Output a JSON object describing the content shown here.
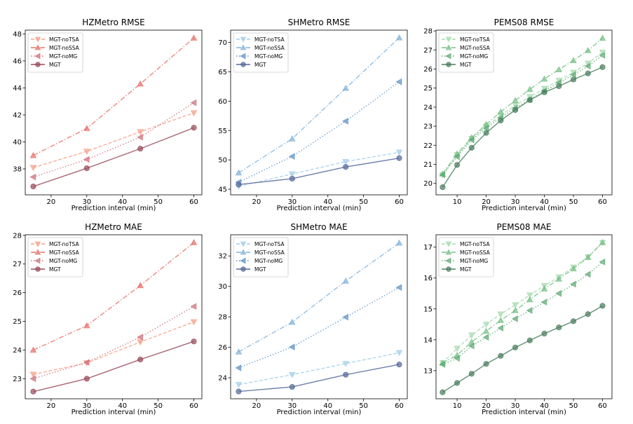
{
  "chart_data": [
    {
      "type": "line",
      "title": "HZMetro RMSE",
      "xlabel": "Prediction interval (min)",
      "ylabel": "",
      "x": [
        15,
        30,
        45,
        60
      ],
      "xlim": [
        12.75,
        62.25
      ],
      "ylim": [
        36.08,
        48.28
      ],
      "xticks": [
        20,
        30,
        40,
        50,
        60
      ],
      "yticks": [
        38,
        40,
        42,
        44,
        46,
        48
      ],
      "legend": "top-left",
      "grid": false,
      "series": [
        {
          "name": "MGT-noTSA",
          "values": [
            38.1,
            39.3,
            40.75,
            42.15
          ],
          "color": "#f7a088",
          "marker": "triangle-down",
          "dash": "dashed"
        },
        {
          "name": "MGT-noSSA",
          "values": [
            39.0,
            41.0,
            44.3,
            47.7
          ],
          "color": "#e5736c",
          "marker": "triangle-up",
          "dash": "dashdot"
        },
        {
          "name": "MGT-noMG",
          "values": [
            37.4,
            38.7,
            40.35,
            42.9
          ],
          "color": "#cf6f7a",
          "marker": "triangle-left",
          "dash": "dotted"
        },
        {
          "name": "MGT",
          "values": [
            36.7,
            38.05,
            39.5,
            41.05
          ],
          "color": "#9a4a5a",
          "marker": "circle",
          "dash": "solid"
        }
      ]
    },
    {
      "type": "line",
      "title": "SHMetro RMSE",
      "xlabel": "Prediction interval (min)",
      "ylabel": "",
      "x": [
        15,
        30,
        45,
        60
      ],
      "xlim": [
        12.75,
        62.25
      ],
      "ylim": [
        44.05,
        72.1
      ],
      "xticks": [
        20,
        30,
        40,
        50,
        60
      ],
      "yticks": [
        45,
        50,
        55,
        60,
        65,
        70
      ],
      "legend": "top-left",
      "grid": false,
      "series": [
        {
          "name": "MGT-noTSA",
          "values": [
            45.5,
            47.6,
            49.7,
            51.3
          ],
          "color": "#a3cfea",
          "marker": "triangle-down",
          "dash": "dashed"
        },
        {
          "name": "MGT-noSSA",
          "values": [
            47.8,
            53.6,
            62.2,
            70.8
          ],
          "color": "#82b3dc",
          "marker": "triangle-up",
          "dash": "dashdot"
        },
        {
          "name": "MGT-noMG",
          "values": [
            46.2,
            50.6,
            56.6,
            63.3
          ],
          "color": "#5f93c8",
          "marker": "triangle-left",
          "dash": "dotted"
        },
        {
          "name": "MGT",
          "values": [
            45.8,
            46.8,
            48.8,
            50.3
          ],
          "color": "#56699a",
          "marker": "circle",
          "dash": "solid"
        }
      ]
    },
    {
      "type": "line",
      "title": "PEMS08 RMSE",
      "xlabel": "Prediction interval (min)",
      "ylabel": "",
      "x": [
        5,
        10,
        15,
        20,
        25,
        30,
        35,
        40,
        45,
        50,
        55,
        60
      ],
      "xlim": [
        2.75,
        63.25
      ],
      "ylim": [
        19.4,
        28.04
      ],
      "xticks": [
        10,
        20,
        30,
        40,
        50,
        60
      ],
      "yticks": [
        20,
        21,
        22,
        23,
        24,
        25,
        26,
        27,
        28
      ],
      "legend": "top-left",
      "grid": false,
      "series": [
        {
          "name": "MGT-noTSA",
          "values": [
            20.45,
            21.5,
            22.35,
            23.0,
            23.55,
            24.1,
            24.55,
            24.98,
            25.4,
            25.82,
            26.3,
            26.88
          ],
          "color": "#a6dbae",
          "marker": "triangle-down",
          "dash": "dashed"
        },
        {
          "name": "MGT-noSSA",
          "values": [
            20.5,
            21.55,
            22.4,
            23.1,
            23.75,
            24.35,
            24.93,
            25.48,
            25.97,
            26.45,
            26.97,
            27.62
          ],
          "color": "#78c088",
          "marker": "triangle-up",
          "dash": "dashdot"
        },
        {
          "name": "MGT-noMG",
          "values": [
            20.45,
            21.4,
            22.28,
            22.9,
            23.45,
            23.95,
            24.4,
            24.85,
            25.28,
            25.7,
            26.15,
            26.72
          ],
          "color": "#5eaa74",
          "marker": "triangle-left",
          "dash": "dotted"
        },
        {
          "name": "MGT",
          "values": [
            19.8,
            20.97,
            21.87,
            22.65,
            23.3,
            23.85,
            24.37,
            24.78,
            25.1,
            25.45,
            25.77,
            26.1
          ],
          "color": "#4a7e5e",
          "marker": "circle",
          "dash": "solid"
        }
      ]
    },
    {
      "type": "line",
      "title": "HZMetro MAE",
      "xlabel": "Prediction interval (min)",
      "ylabel": "",
      "x": [
        15,
        30,
        45,
        60
      ],
      "xlim": [
        12.75,
        62.25
      ],
      "ylim": [
        22.3,
        28.02
      ],
      "xticks": [
        20,
        30,
        40,
        50,
        60
      ],
      "yticks": [
        23,
        24,
        25,
        26,
        27,
        28
      ],
      "legend": "top-left",
      "grid": false,
      "series": [
        {
          "name": "MGT-noTSA",
          "values": [
            23.15,
            23.55,
            24.28,
            24.98
          ],
          "color": "#f7a088",
          "marker": "triangle-down",
          "dash": "dashed"
        },
        {
          "name": "MGT-noSSA",
          "values": [
            24.0,
            24.85,
            26.25,
            27.75
          ],
          "color": "#e5736c",
          "marker": "triangle-up",
          "dash": "dashdot"
        },
        {
          "name": "MGT-noMG",
          "values": [
            23.0,
            23.57,
            24.45,
            25.52
          ],
          "color": "#cf6f7a",
          "marker": "triangle-left",
          "dash": "dotted"
        },
        {
          "name": "MGT",
          "values": [
            22.55,
            23.0,
            23.67,
            24.3
          ],
          "color": "#9a4a5a",
          "marker": "circle",
          "dash": "solid"
        }
      ]
    },
    {
      "type": "line",
      "title": "SHMetro MAE",
      "xlabel": "Prediction interval (min)",
      "ylabel": "",
      "x": [
        15,
        30,
        45,
        60
      ],
      "xlim": [
        12.75,
        62.25
      ],
      "ylim": [
        22.62,
        33.39
      ],
      "xticks": [
        20,
        30,
        40,
        50,
        60
      ],
      "yticks": [
        24,
        26,
        28,
        30,
        32
      ],
      "legend": "top-left",
      "grid": false,
      "series": [
        {
          "name": "MGT-noTSA",
          "values": [
            23.55,
            24.2,
            24.93,
            25.65
          ],
          "color": "#a3cfea",
          "marker": "triangle-down",
          "dash": "dashed"
        },
        {
          "name": "MGT-noSSA",
          "values": [
            25.7,
            27.65,
            30.35,
            32.85
          ],
          "color": "#82b3dc",
          "marker": "triangle-up",
          "dash": "dashdot"
        },
        {
          "name": "MGT-noMG",
          "values": [
            24.65,
            26.02,
            27.98,
            29.93
          ],
          "color": "#5f93c8",
          "marker": "triangle-left",
          "dash": "dotted"
        },
        {
          "name": "MGT",
          "values": [
            23.1,
            23.4,
            24.2,
            24.87
          ],
          "color": "#56699a",
          "marker": "circle",
          "dash": "solid"
        }
      ]
    },
    {
      "type": "line",
      "title": "PEMS08 MAE",
      "xlabel": "Prediction interval (min)",
      "ylabel": "",
      "x": [
        5,
        10,
        15,
        20,
        25,
        30,
        35,
        40,
        45,
        50,
        55,
        60
      ],
      "xlim": [
        2.75,
        63.25
      ],
      "ylim": [
        12.09,
        17.4
      ],
      "xticks": [
        10,
        20,
        30,
        40,
        50,
        60
      ],
      "yticks": [
        13,
        14,
        15,
        16,
        17
      ],
      "legend": "top-left",
      "grid": false,
      "series": [
        {
          "name": "MGT-noTSA",
          "values": [
            13.25,
            13.72,
            14.15,
            14.5,
            14.83,
            15.13,
            15.45,
            15.75,
            16.03,
            16.35,
            16.68,
            17.15
          ],
          "color": "#a6dbae",
          "marker": "triangle-down",
          "dash": "dashed"
        },
        {
          "name": "MGT-noSSA",
          "values": [
            13.25,
            13.5,
            13.93,
            14.28,
            14.63,
            14.95,
            15.3,
            15.65,
            15.97,
            16.3,
            16.67,
            17.15
          ],
          "color": "#78c088",
          "marker": "triangle-up",
          "dash": "dashdot"
        },
        {
          "name": "MGT-noMG",
          "values": [
            13.2,
            13.4,
            13.8,
            14.08,
            14.38,
            14.68,
            14.95,
            15.22,
            15.5,
            15.8,
            16.12,
            16.52
          ],
          "color": "#5eaa74",
          "marker": "triangle-left",
          "dash": "dotted"
        },
        {
          "name": "MGT",
          "values": [
            12.3,
            12.6,
            12.9,
            13.22,
            13.48,
            13.75,
            13.98,
            14.2,
            14.4,
            14.6,
            14.83,
            15.1
          ],
          "color": "#4a7e5e",
          "marker": "circle",
          "dash": "solid"
        }
      ]
    }
  ]
}
